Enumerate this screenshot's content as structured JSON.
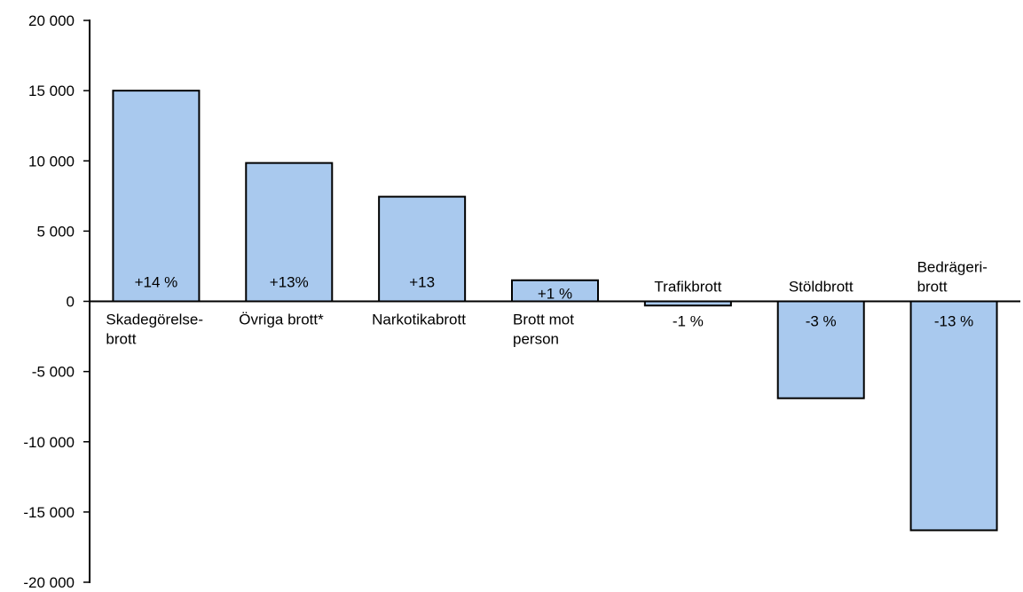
{
  "chart_data": {
    "type": "bar",
    "title": "",
    "xlabel": "",
    "ylabel": "",
    "ylim": [
      -20000,
      20000
    ],
    "yticks": [
      20000,
      15000,
      10000,
      5000,
      0,
      -5000,
      -10000,
      -15000,
      -20000
    ],
    "ytick_labels": [
      "20 000",
      "15 000",
      "10 000",
      "5 000",
      "0",
      "-5 000",
      "-10 000",
      "-15 000",
      "-20 000"
    ],
    "categories": [
      [
        "Skadegörelse-",
        "brott"
      ],
      [
        "Övriga brott*"
      ],
      [
        "Narkotikabrott"
      ],
      [
        "Brott mot",
        "person"
      ],
      [
        "Trafikbrott"
      ],
      [
        "Stöldbrott"
      ],
      [
        "Bedrägeri-",
        "brott"
      ]
    ],
    "values": [
      15000,
      9850,
      7450,
      1500,
      -300,
      -6900,
      -16300
    ],
    "data_labels": [
      "+14 %",
      "+13%",
      "+13",
      "+1 %",
      "-1 %",
      "-3 %",
      "-13 %"
    ],
    "grid": false,
    "legend": "none",
    "colors": {
      "bar_fill": "#a9c9ee",
      "bar_stroke": "#000000",
      "axis": "#000000"
    }
  }
}
